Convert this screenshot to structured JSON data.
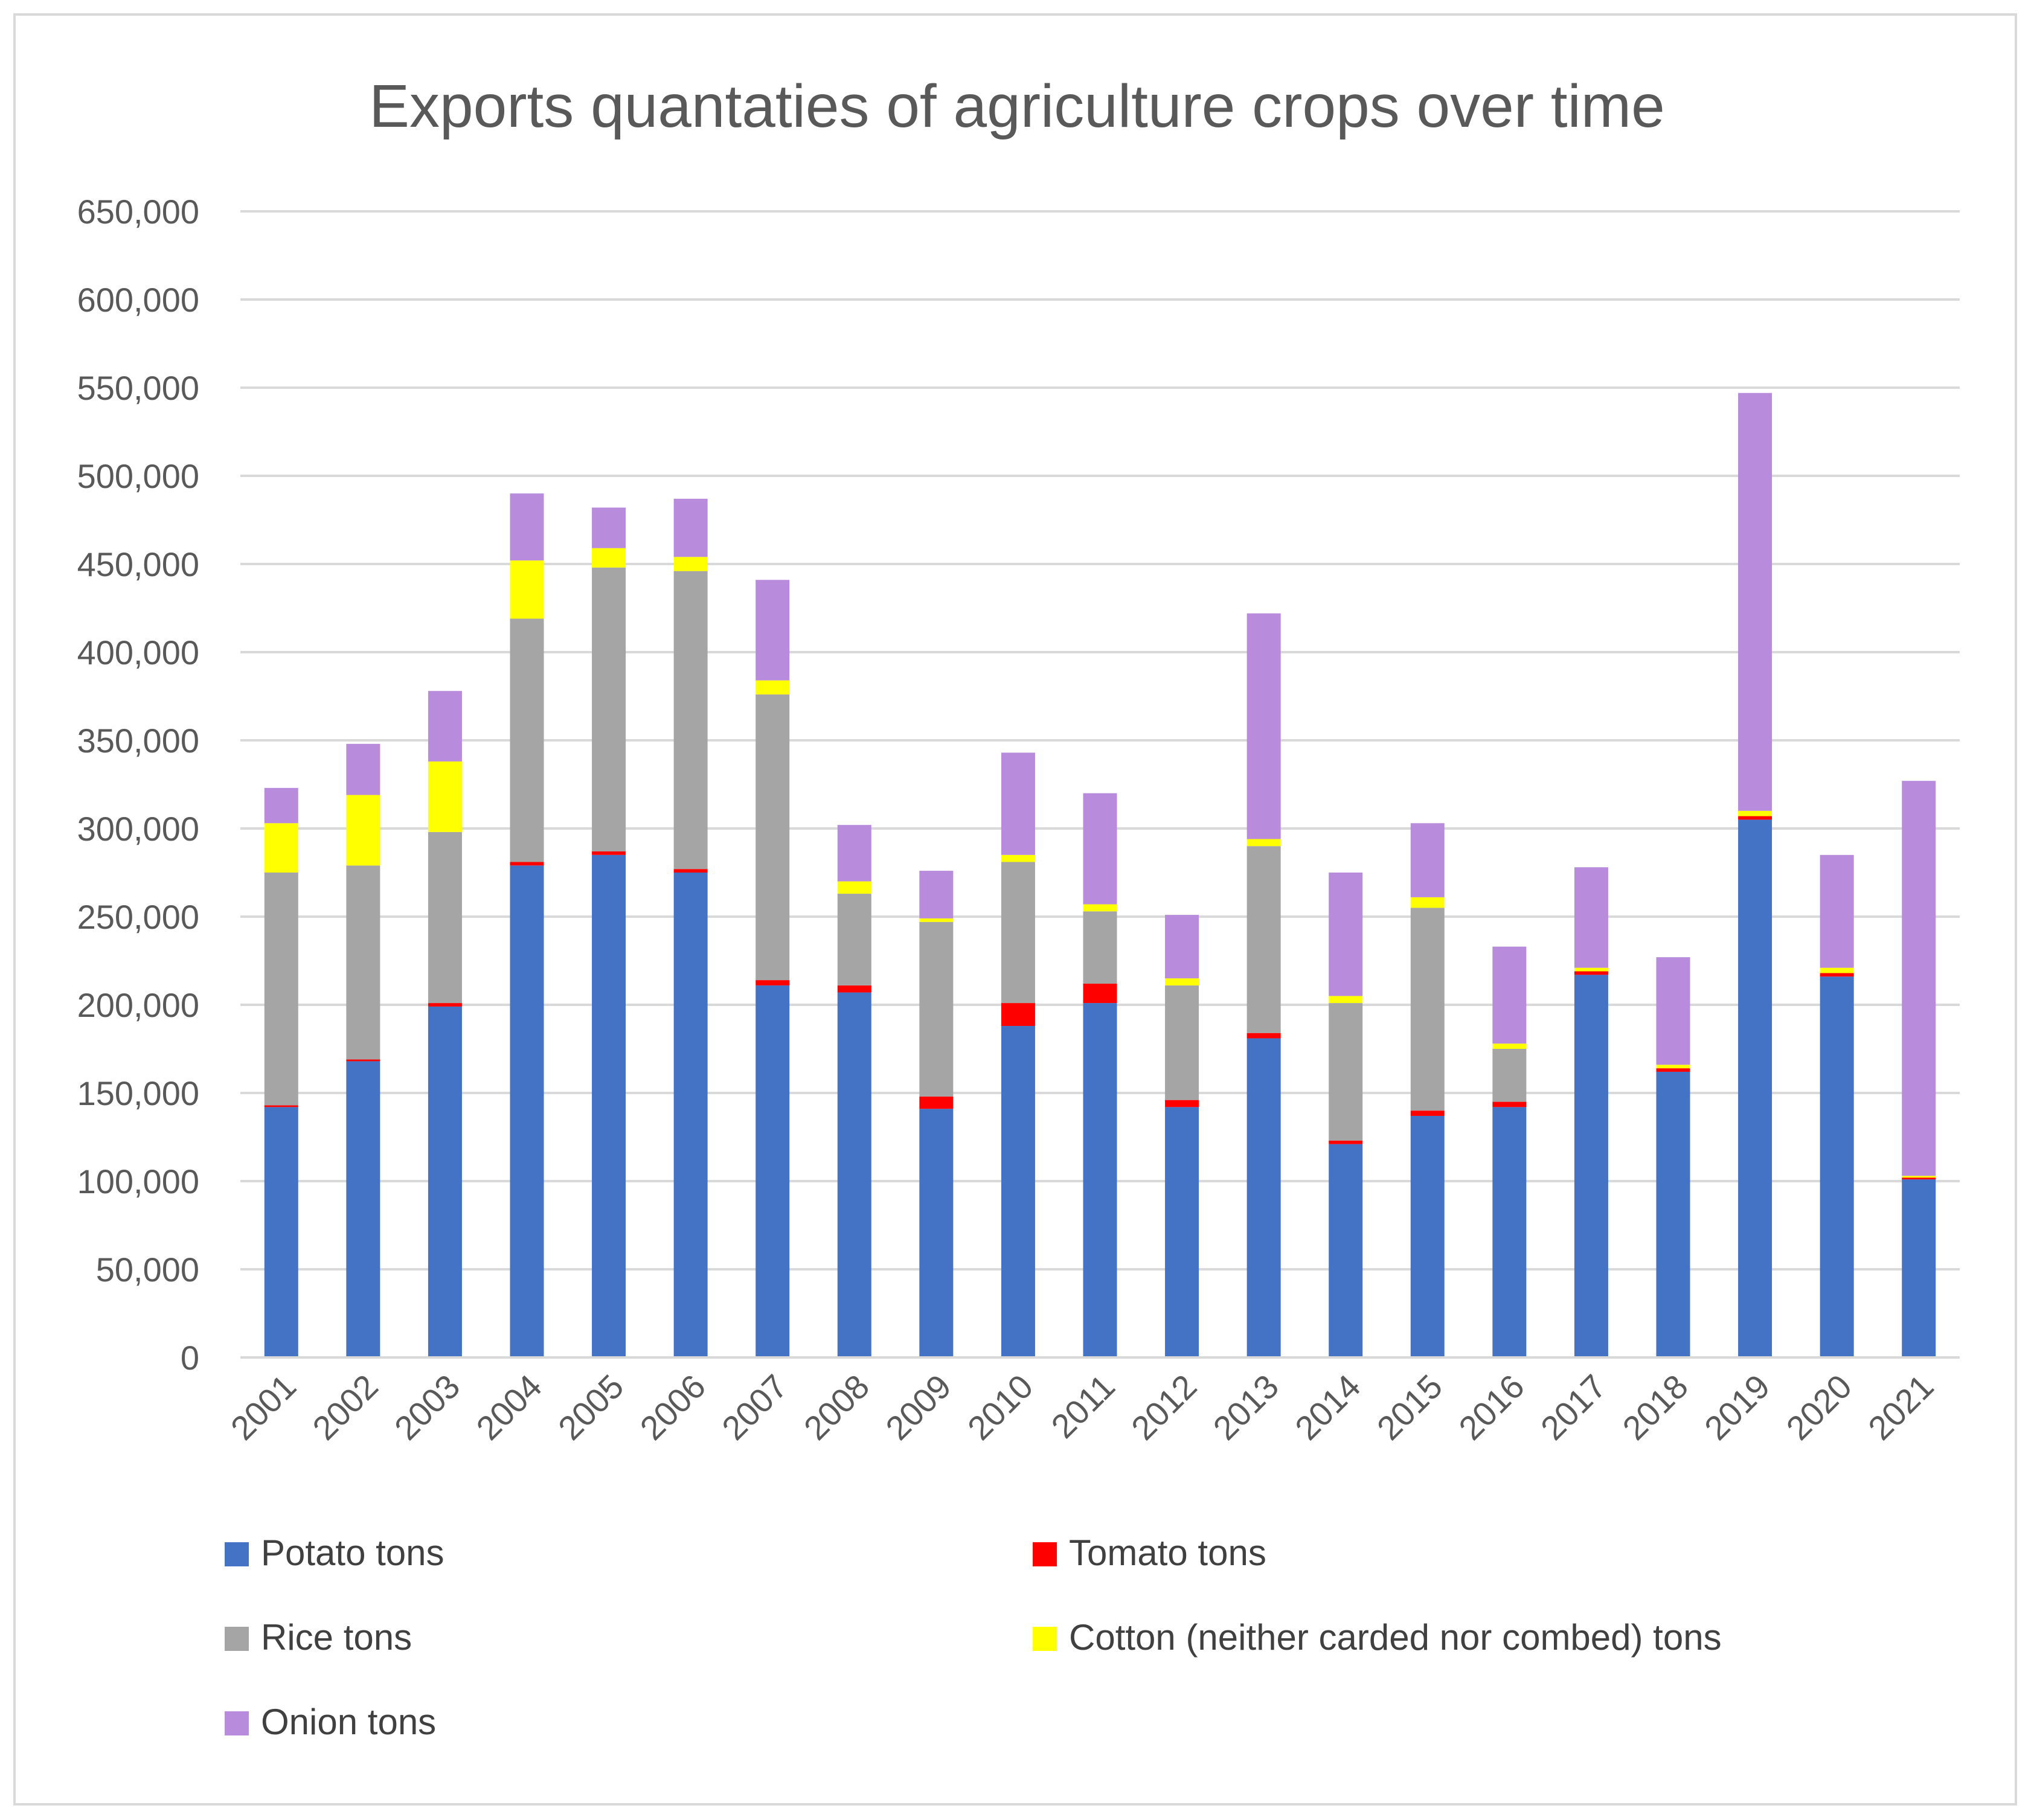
{
  "chart_data": {
    "type": "bar",
    "stacked": true,
    "title": "Exports quantaties of agriculture crops over time",
    "xlabel": "",
    "ylabel": "",
    "ylim": [
      0,
      650000
    ],
    "ytick_values": [
      0,
      50000,
      100000,
      150000,
      200000,
      250000,
      300000,
      350000,
      400000,
      450000,
      500000,
      550000,
      600000,
      650000
    ],
    "ytick_labels": [
      "0",
      "50,000",
      "100,000",
      "150,000",
      "200,000",
      "250,000",
      "300,000",
      "350,000",
      "400,000",
      "450,000",
      "500,000",
      "550,000",
      "600,000",
      "650,000"
    ],
    "grid": true,
    "legend_position": "bottom",
    "categories": [
      "2001",
      "2002",
      "2003",
      "2004",
      "2005",
      "2006",
      "2007",
      "2008",
      "2009",
      "2010",
      "2011",
      "2012",
      "2013",
      "2014",
      "2015",
      "2016",
      "2017",
      "2018",
      "2019",
      "2020",
      "2021"
    ],
    "series": [
      {
        "name": "Potato tons",
        "color": "#4472c4",
        "values": [
          142000,
          168000,
          199000,
          279000,
          285000,
          275000,
          211000,
          207000,
          141000,
          188000,
          201000,
          142000,
          181000,
          121000,
          137000,
          142000,
          217000,
          162000,
          305000,
          216000,
          101000
        ]
      },
      {
        "name": "Tomato tons",
        "color": "#ff0000",
        "values": [
          1000,
          1000,
          2000,
          2000,
          2000,
          2000,
          3000,
          4000,
          7000,
          13000,
          11000,
          4000,
          3000,
          2000,
          3000,
          3000,
          2000,
          2000,
          2000,
          2000,
          1000
        ]
      },
      {
        "name": "Rice tons",
        "color": "#a5a5a5",
        "values": [
          132000,
          110000,
          97000,
          138000,
          161000,
          169000,
          162000,
          52000,
          99000,
          80000,
          41000,
          65000,
          106000,
          78000,
          115000,
          30000,
          0,
          0,
          0,
          0,
          0
        ]
      },
      {
        "name": "Cotton (neither carded nor combed) tons",
        "color": "#ffff00",
        "values": [
          28000,
          40000,
          40000,
          33000,
          11000,
          8000,
          8000,
          7000,
          2000,
          4000,
          4000,
          4000,
          4000,
          4000,
          6000,
          3000,
          2000,
          2000,
          3000,
          3000,
          1000
        ]
      },
      {
        "name": "Onion tons",
        "color": "#b88bdc",
        "values": [
          20000,
          29000,
          40000,
          38000,
          23000,
          33000,
          57000,
          32000,
          27000,
          58000,
          63000,
          36000,
          128000,
          70000,
          42000,
          55000,
          57000,
          61000,
          237000,
          64000,
          224000
        ]
      }
    ]
  }
}
